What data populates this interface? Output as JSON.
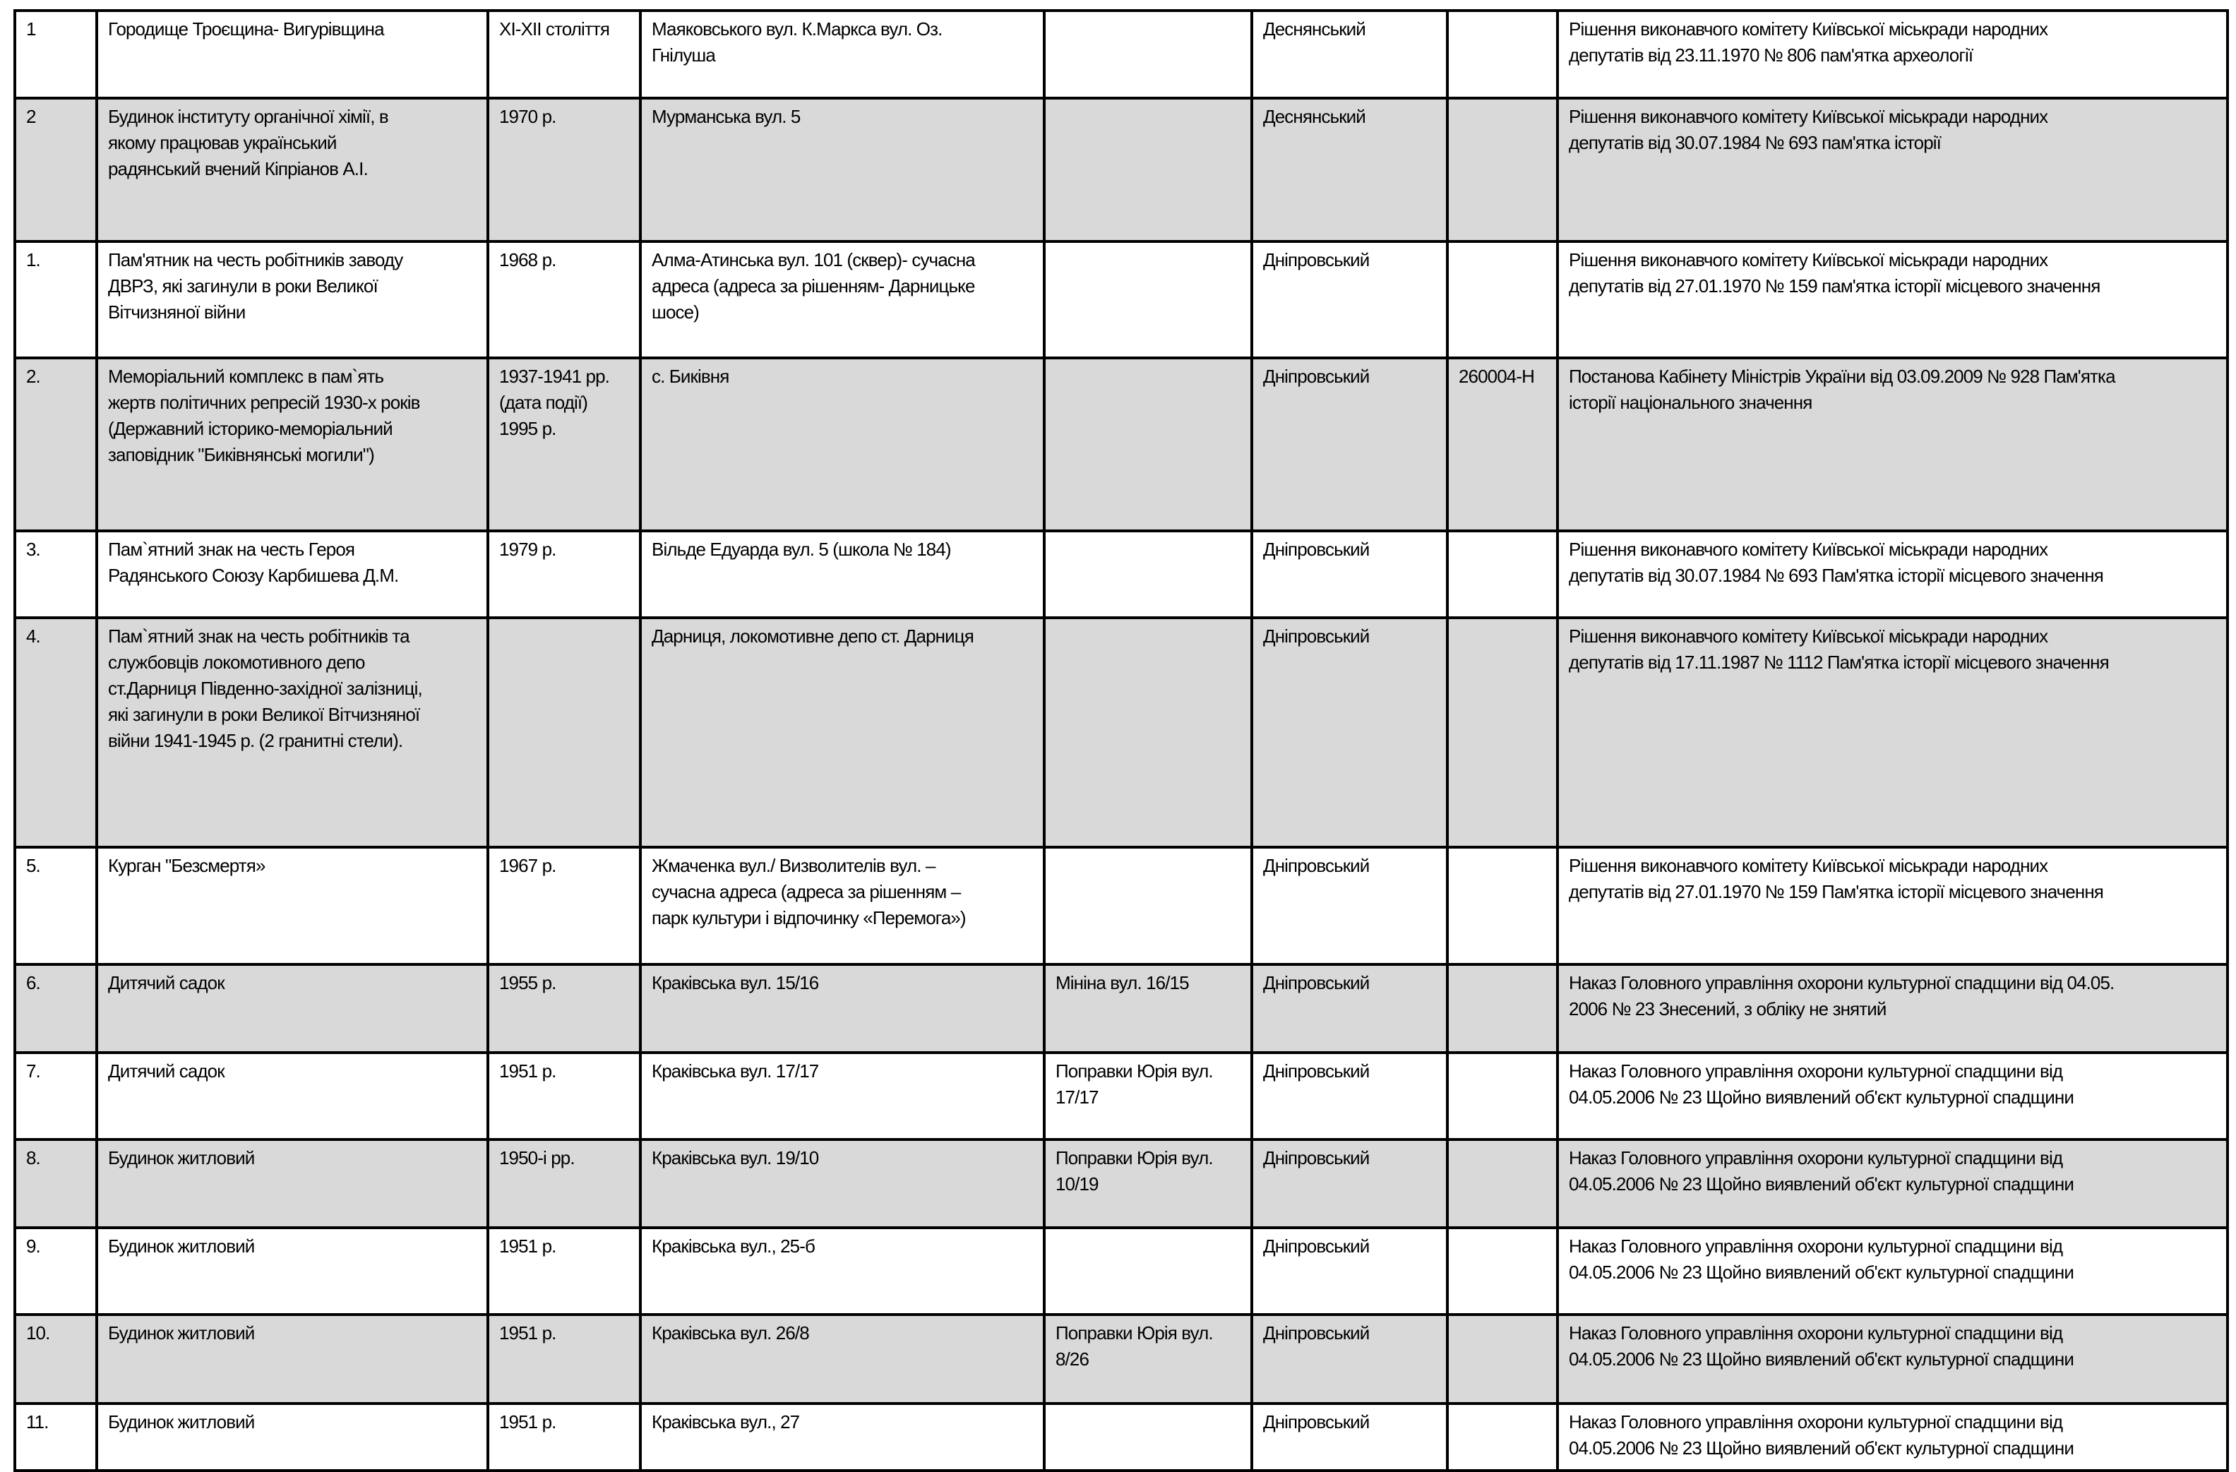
{
  "rows": [
    {
      "num": "1",
      "name": "Городище Троєщина- Вигурівщина",
      "date": "XI-XII століття",
      "address": "Маяковського вул. К.Маркса вул. Оз.\nГнілуша",
      "alt_address": "",
      "district": "Деснянський",
      "code": "",
      "document": "Рішення виконавчого комітету Київської міськради народних\nдепутатів від 23.11.1970 № 806 пам'ятка археології"
    },
    {
      "num": "2",
      "name": "Будинок інституту органічної хімії, в\nякому працював український\nрадянський вчений Кіпріанов А.І.",
      "date": "1970 р.",
      "address": "Мурманська вул. 5",
      "alt_address": "",
      "district": "Деснянський",
      "code": "",
      "document": "Рішення виконавчого комітету Київської міськради народних\nдепутатів від 30.07.1984 № 693 пам'ятка історії"
    },
    {
      "num": "1.",
      "name": "Пам'ятник на честь робітників заводу\nДВРЗ, які загинули в роки Великої\nВітчизняної війни",
      "date": "1968 р.",
      "address": "Алма-Атинська вул. 101 (сквер)- сучасна\nадреса (адреса за рішенням- Дарницьке\nшосе)",
      "alt_address": "",
      "district": "Дніпровський",
      "code": "",
      "document": "Рішення виконавчого комітету Київської міськради народних\nдепутатів від 27.01.1970 № 159 пам'ятка історії місцевого значення"
    },
    {
      "num": "2.",
      "name": "Меморіальний комплекс в пам`ять\nжертв політичних репресій 1930-х років\n(Державний історико-меморіальний\nзаповідник \"Биківнянські могили\")",
      "date": "1937-1941 рр.\n(дата події)\n1995 р.",
      "address": "с. Биківня",
      "alt_address": "",
      "district": "Дніпровський",
      "code": "260004-Н",
      "document": "Постанова Кабінету Міністрів України від 03.09.2009 № 928 Пам'ятка\nісторії національного значення"
    },
    {
      "num": "3.",
      "name": "Пам`ятний знак на честь Героя\nРадянського Союзу Карбишева Д.М.",
      "date": "1979 р.",
      "address": "Вільде Едуарда вул. 5 (школа № 184)",
      "alt_address": "",
      "district": "Дніпровський",
      "code": "",
      "document": "Рішення виконавчого комітету Київської міськради народних\nдепутатів від 30.07.1984 № 693 Пам'ятка історії  місцевого значення"
    },
    {
      "num": "4.",
      "name": "Пам`ятний знак на честь робітників та\nслужбовців локомотивного депо\nст.Дарниця Південно-західної залізниці,\nякі загинули в роки Великої Вітчизняної\nвійни  1941-1945 р. (2 гранитні стели).",
      "date": "",
      "address": "Дарниця, локомотивне депо ст. Дарниця",
      "alt_address": "",
      "district": "Дніпровський",
      "code": "",
      "document": "Рішення виконавчого комітету Київської міськради народних\nдепутатів від 17.11.1987 № 1112 Пам'ятка історії місцевого значення"
    },
    {
      "num": "5.",
      "name": "Курган \"Безсмертя»",
      "date": "1967 р.",
      "address": "Жмаченка вул./ Визволителів вул. –\nсучасна адреса (адреса за рішенням –\nпарк культури і відпочинку «Перемога»)",
      "alt_address": "",
      "district": "Дніпровський",
      "code": "",
      "document": "Рішення виконавчого комітету Київської міськради народних\nдепутатів від 27.01.1970 № 159 Пам'ятка історії місцевого значення"
    },
    {
      "num": "6.",
      "name": "Дитячий садок",
      "date": "1955 р.",
      "address": "Краківська вул. 15/16",
      "alt_address": "Мініна вул. 16/15",
      "district": "Дніпровський",
      "code": "",
      "document": "Наказ Головного управління охорони культурної спадщини від 04.05.\n2006 № 23 Знесений, з обліку не знятий"
    },
    {
      "num": "7.",
      "name": "Дитячий садок",
      "date": "1951 р.",
      "address": "Краківська вул. 17/17",
      "alt_address": "Поправки Юрія вул.\n17/17",
      "district": "Дніпровський",
      "code": "",
      "document": "Наказ  Головного управління охорони культурної спадщини від\n04.05.2006 № 23 Щойно виявлений об'єкт культурної спадщини"
    },
    {
      "num": "8.",
      "name": "Будинок житловий",
      "date": "1950-і рр.",
      "address": "Краківська вул. 19/10",
      "alt_address": "Поправки Юрія вул.\n10/19",
      "district": "Дніпровський",
      "code": "",
      "document": "Наказ  Головного управління охорони культурної спадщини від\n04.05.2006 № 23 Щойно виявлений об'єкт культурної спадщини"
    },
    {
      "num": "9.",
      "name": "Будинок житловий",
      "date": "1951 р.",
      "address": "Краківська вул., 25-б",
      "alt_address": "",
      "district": "Дніпровський",
      "code": "",
      "document": "Наказ Головного управління охорони культурної спадщини від\n04.05.2006 № 23 Щойно виявлений об'єкт культурної спадщини"
    },
    {
      "num": "10.",
      "name": "Будинок житловий",
      "date": "1951 р.",
      "address": "Краківська вул. 26/8",
      "alt_address": "Поправки Юрія вул.\n8/26",
      "district": "Дніпровський",
      "code": "",
      "document": "Наказ  Головного управління охорони культурної спадщини від\n04.05.2006 № 23 Щойно виявлений об'єкт культурної спадщини"
    },
    {
      "num": "11.",
      "name": "Будинок житловий",
      "date": "1951 р.",
      "address": "Краківська вул., 27",
      "alt_address": "",
      "district": "Дніпровський",
      "code": "",
      "document": "Наказ  Головного управління охорони культурної спадщини від\n04.05.2006 № 23 Щойно виявлений об'єкт культурної спадщини"
    }
  ],
  "colors": {
    "stripe": "#d9d9d9",
    "border": "#000000"
  }
}
